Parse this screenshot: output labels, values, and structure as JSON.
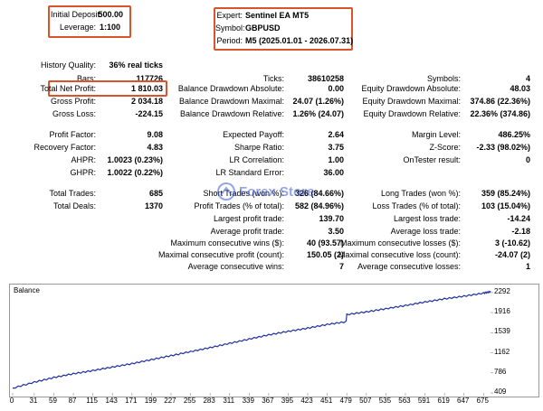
{
  "header": {
    "initial_deposit_label": "Initial Deposit:",
    "initial_deposit_value": "500.00",
    "leverage_label": "Leverage:",
    "leverage_value": "1:100",
    "expert_label": "Expert:",
    "expert_value": "Sentinel EA MT5",
    "symbol_label": "Symbol:",
    "symbol_value": "GBPUSD",
    "period_label": "Period:",
    "period_value": "M5 (2025.01.01 - 2026.07.31)"
  },
  "stats": {
    "history_quality_label": "History Quality:",
    "history_quality_value": "36% real ticks",
    "bars_label": "Bars:",
    "bars_value": "117726",
    "ticks_label": "Ticks:",
    "ticks_value": "38610258",
    "symbols_label": "Symbols:",
    "symbols_value": "4",
    "net_profit_label": "Total Net Profit:",
    "net_profit_value": "1 810.03",
    "bal_dd_abs_label": "Balance Drawdown Absolute:",
    "bal_dd_abs_value": "0.00",
    "eq_dd_abs_label": "Equity Drawdown Absolute:",
    "eq_dd_abs_value": "48.03",
    "gross_profit_label": "Gross Profit:",
    "gross_profit_value": "2 034.18",
    "bal_dd_max_label": "Balance Drawdown Maximal:",
    "bal_dd_max_value": "24.07 (1.26%)",
    "eq_dd_max_label": "Equity Drawdown Maximal:",
    "eq_dd_max_value": "374.86 (22.36%)",
    "gross_loss_label": "Gross Loss:",
    "gross_loss_value": "-224.15",
    "bal_dd_rel_label": "Balance Drawdown Relative:",
    "bal_dd_rel_value": "1.26% (24.07)",
    "eq_dd_rel_label": "Equity Drawdown Relative:",
    "eq_dd_rel_value": "22.36% (374.86)",
    "profit_factor_label": "Profit Factor:",
    "profit_factor_value": "9.08",
    "expected_payoff_label": "Expected Payoff:",
    "expected_payoff_value": "2.64",
    "margin_level_label": "Margin Level:",
    "margin_level_value": "486.25%",
    "recovery_factor_label": "Recovery Factor:",
    "recovery_factor_value": "4.83",
    "sharpe_label": "Sharpe Ratio:",
    "sharpe_value": "3.75",
    "zscore_label": "Z-Score:",
    "zscore_value": "-2.33 (98.02%)",
    "ahpr_label": "AHPR:",
    "ahpr_value": "1.0023 (0.23%)",
    "lr_corr_label": "LR Correlation:",
    "lr_corr_value": "1.00",
    "ontester_label": "OnTester result:",
    "ontester_value": "0",
    "ghpr_label": "GHPR:",
    "ghpr_value": "1.0022 (0.22%)",
    "lr_std_label": "LR Standard Error:",
    "lr_std_value": "36.00",
    "total_trades_label": "Total Trades:",
    "total_trades_value": "685",
    "short_trades_label": "Short Trades (won %):",
    "short_trades_value": "326 (84.66%)",
    "long_trades_label": "Long Trades (won %):",
    "long_trades_value": "359 (85.24%)",
    "total_deals_label": "Total Deals:",
    "total_deals_value": "1370",
    "profit_trades_label": "Profit Trades (% of total):",
    "profit_trades_value": "582 (84.96%)",
    "loss_trades_label": "Loss Trades (% of total):",
    "loss_trades_value": "103 (15.04%)",
    "largest_profit_label": "Largest profit trade:",
    "largest_profit_value": "139.70",
    "largest_loss_label": "Largest loss trade:",
    "largest_loss_value": "-14.24",
    "avg_profit_label": "Average profit trade:",
    "avg_profit_value": "3.50",
    "avg_loss_label": "Average loss trade:",
    "avg_loss_value": "-2.18",
    "max_cons_wins_label": "Maximum consecutive wins ($):",
    "max_cons_wins_value": "40 (93.57)",
    "max_cons_losses_label": "Maximum consecutive losses ($):",
    "max_cons_losses_value": "3 (-10.62)",
    "maximal_cons_profit_label": "Maximal consecutive profit (count):",
    "maximal_cons_profit_value": "150.05 (2)",
    "maximal_cons_loss_label": "Maximal consecutive loss (count):",
    "maximal_cons_loss_value": "-24.07 (2)",
    "avg_cons_wins_label": "Average consecutive wins:",
    "avg_cons_wins_value": "7",
    "avg_cons_losses_label": "Average consecutive losses:",
    "avg_cons_losses_value": "1"
  },
  "watermark": {
    "text": "Forex Store",
    "color": "#3b5bd6"
  },
  "colors": {
    "highlight": "#d9532b",
    "line": "#1f2f9e"
  },
  "chart_data": {
    "type": "line",
    "title": "Balance",
    "x_ticks": [
      "0",
      "31",
      "59",
      "87",
      "115",
      "143",
      "171",
      "199",
      "227",
      "255",
      "283",
      "311",
      "339",
      "367",
      "395",
      "423",
      "451",
      "479",
      "507",
      "535",
      "563",
      "591",
      "619",
      "647",
      "675"
    ],
    "y_ticks": [
      "409",
      "786",
      "1162",
      "1539",
      "1916",
      "2292"
    ],
    "ylim": [
      409,
      2340
    ],
    "xlim": [
      0,
      685
    ],
    "series": [
      {
        "x": [
          0,
          31,
          59,
          87,
          115,
          143,
          171,
          199,
          227,
          255,
          283,
          311,
          339,
          367,
          395,
          423,
          451,
          478,
          479,
          507,
          535,
          563,
          591,
          619,
          647,
          675,
          685
        ],
        "y": [
          500,
          612,
          700,
          770,
          830,
          895,
          960,
          1035,
          1110,
          1185,
          1260,
          1340,
          1420,
          1500,
          1565,
          1625,
          1695,
          1745,
          1880,
          1930,
          1990,
          2050,
          2115,
          2175,
          2225,
          2282,
          2310
        ]
      }
    ]
  }
}
